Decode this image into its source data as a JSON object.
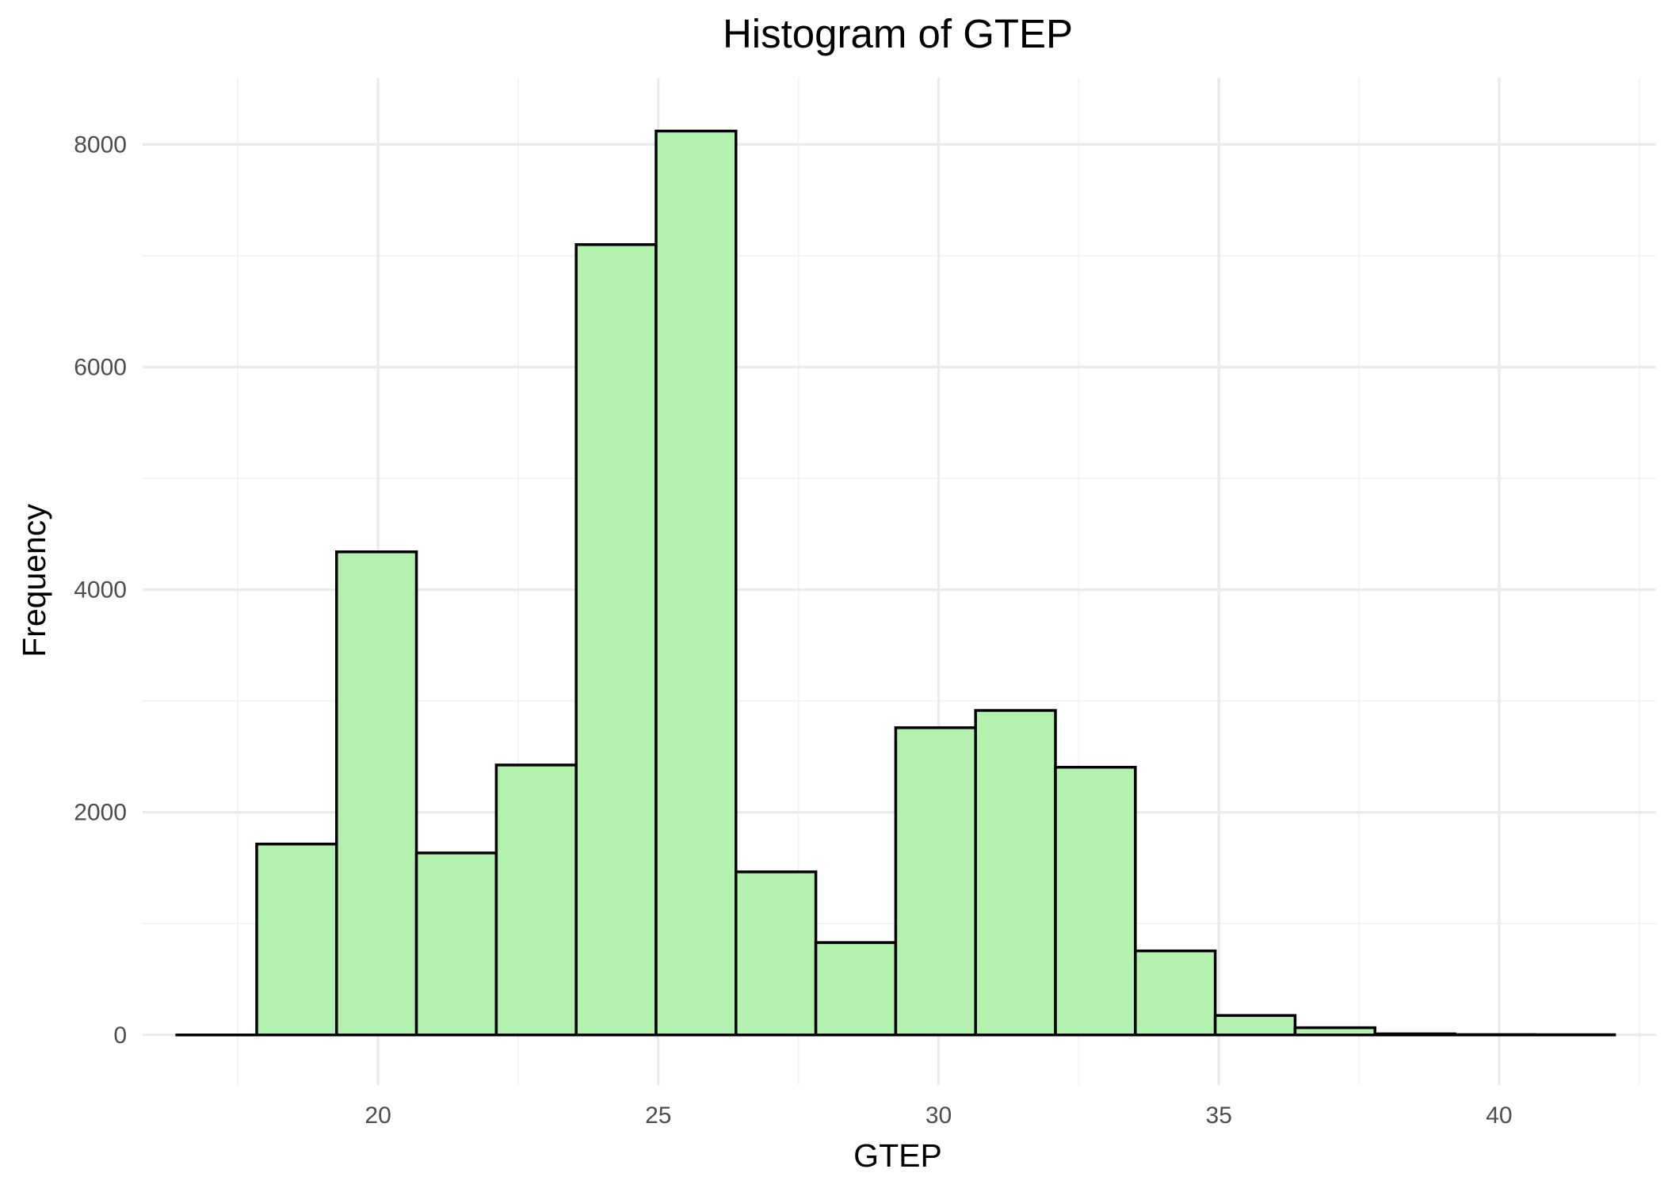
{
  "chart_data": {
    "type": "bar",
    "title": "Histogram of GTEP",
    "xlabel": "GTEP",
    "ylabel": "Frequency",
    "xlim": [
      15.8,
      42.8
    ],
    "ylim": [
      -450,
      8600
    ],
    "x_ticks": [
      20,
      25,
      30,
      35,
      40
    ],
    "y_ticks": [
      0,
      2000,
      4000,
      6000,
      8000
    ],
    "bin_width": 1.425,
    "bins": [
      {
        "start": 16.41,
        "end": 17.835,
        "count": 0
      },
      {
        "start": 17.835,
        "end": 19.26,
        "count": 1715
      },
      {
        "start": 19.26,
        "end": 20.685,
        "count": 4340
      },
      {
        "start": 20.685,
        "end": 22.11,
        "count": 1635
      },
      {
        "start": 22.11,
        "end": 23.535,
        "count": 2425
      },
      {
        "start": 23.535,
        "end": 24.96,
        "count": 7100
      },
      {
        "start": 24.96,
        "end": 26.385,
        "count": 8120
      },
      {
        "start": 26.385,
        "end": 27.81,
        "count": 1465
      },
      {
        "start": 27.81,
        "end": 29.235,
        "count": 830
      },
      {
        "start": 29.235,
        "end": 30.66,
        "count": 2760
      },
      {
        "start": 30.66,
        "end": 32.085,
        "count": 2915
      },
      {
        "start": 32.085,
        "end": 33.51,
        "count": 2405
      },
      {
        "start": 33.51,
        "end": 34.935,
        "count": 755
      },
      {
        "start": 34.935,
        "end": 36.36,
        "count": 175
      },
      {
        "start": 36.36,
        "end": 37.785,
        "count": 65
      },
      {
        "start": 37.785,
        "end": 39.21,
        "count": 10
      },
      {
        "start": 39.21,
        "end": 40.635,
        "count": 3
      },
      {
        "start": 40.635,
        "end": 42.06,
        "count": 2
      }
    ],
    "grid": true,
    "legend": "none",
    "colors": {
      "fill": "#b2f2ae",
      "edge": "#000000"
    }
  }
}
